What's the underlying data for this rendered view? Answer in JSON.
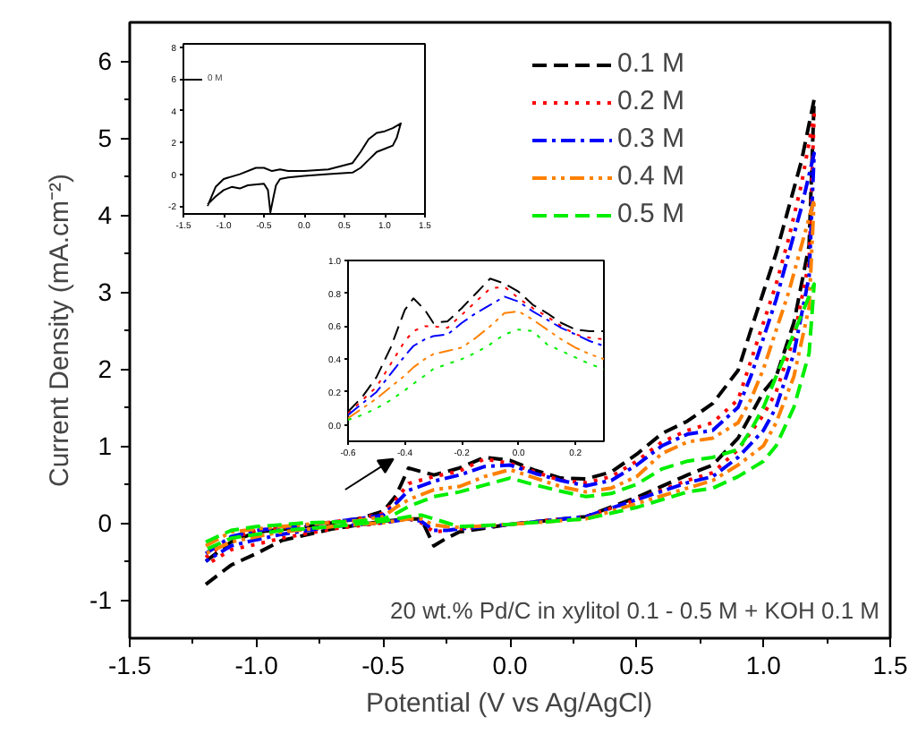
{
  "chart_data": [
    {
      "type": "line",
      "xlabel": "Potential (V vs Ag/AgCl)",
      "ylabel": "Current Density (mA.cm⁻²)",
      "x": [
        -1.2,
        -1.1,
        -1.0,
        -0.8,
        -0.6,
        -0.5,
        -0.45,
        -0.4,
        -0.3,
        -0.2,
        -0.1,
        0,
        0.1,
        0.2,
        0.3,
        0.4,
        0.5,
        0.6,
        0.7,
        0.8,
        0.9,
        0.95,
        1.0,
        1.05,
        1.1,
        1.15,
        1.2,
        1.18,
        1.12,
        1.05,
        1.0,
        0.9,
        0.8,
        0.7,
        0.5,
        0.3,
        0.0,
        -0.2,
        -0.25,
        -0.3,
        -0.35,
        -0.4,
        -0.5,
        -0.7,
        -0.9,
        -1.0,
        -1.1,
        -1.2
      ],
      "series": [
        {
          "name": "0.1 M",
          "color": "#000000",
          "line_style": "dashed",
          "values": [
            -0.5,
            -0.25,
            -0.12,
            -0.05,
            0.05,
            0.15,
            0.35,
            0.71,
            0.62,
            0.71,
            0.85,
            0.81,
            0.68,
            0.58,
            0.57,
            0.66,
            0.89,
            1.16,
            1.32,
            1.55,
            1.98,
            2.5,
            3.0,
            3.5,
            4.1,
            4.7,
            5.5,
            3.6,
            2.6,
            1.9,
            1.7,
            1.1,
            0.75,
            0.62,
            0.33,
            0.08,
            -0.02,
            -0.12,
            -0.2,
            -0.3,
            0.05,
            0.05,
            0.02,
            -0.08,
            -0.23,
            -0.4,
            -0.55,
            -0.8
          ]
        },
        {
          "name": "0.2 M",
          "color": "#ff0000",
          "line_style": "dotted",
          "values": [
            -0.45,
            -0.2,
            -0.1,
            -0.03,
            0.05,
            0.12,
            0.3,
            0.51,
            0.6,
            0.67,
            0.83,
            0.77,
            0.66,
            0.55,
            0.52,
            0.6,
            0.8,
            1.05,
            1.2,
            1.3,
            1.6,
            2.1,
            2.6,
            3.1,
            3.7,
            4.4,
            5.3,
            3.4,
            2.4,
            1.7,
            1.4,
            0.95,
            0.65,
            0.55,
            0.3,
            0.08,
            -0.02,
            -0.08,
            -0.1,
            -0.12,
            0.0,
            0.05,
            0.0,
            -0.08,
            -0.2,
            -0.28,
            -0.35,
            -0.55
          ]
        },
        {
          "name": "0.3 M",
          "color": "#0000ff",
          "line_style": "dashdot",
          "values": [
            -0.4,
            -0.18,
            -0.1,
            -0.03,
            0.05,
            0.1,
            0.25,
            0.42,
            0.54,
            0.62,
            0.73,
            0.75,
            0.64,
            0.55,
            0.48,
            0.55,
            0.75,
            1.0,
            1.15,
            1.2,
            1.5,
            1.9,
            2.4,
            2.9,
            3.5,
            4.1,
            4.8,
            3.2,
            2.2,
            1.5,
            1.2,
            0.85,
            0.6,
            0.52,
            0.3,
            0.08,
            -0.02,
            -0.08,
            -0.1,
            -0.1,
            0.02,
            0.05,
            0.0,
            -0.05,
            -0.15,
            -0.22,
            -0.3,
            -0.5
          ]
        },
        {
          "name": "0.4 M",
          "color": "#ff8000",
          "line_style": "dashdotdot",
          "values": [
            -0.3,
            -0.12,
            -0.08,
            -0.02,
            0.03,
            0.08,
            0.2,
            0.3,
            0.43,
            0.47,
            0.6,
            0.69,
            0.58,
            0.47,
            0.4,
            0.45,
            0.6,
            0.9,
            1.05,
            1.1,
            1.3,
            1.6,
            2.0,
            2.5,
            3.0,
            3.6,
            4.2,
            2.8,
            1.9,
            1.3,
            1.0,
            0.75,
            0.55,
            0.45,
            0.25,
            0.05,
            -0.02,
            -0.06,
            -0.05,
            -0.03,
            0.05,
            0.05,
            0.0,
            -0.05,
            -0.12,
            -0.18,
            -0.25,
            -0.4
          ]
        },
        {
          "name": "0.5 M",
          "color": "#00ee00",
          "line_style": "dashed",
          "values": [
            -0.25,
            -0.1,
            -0.05,
            0.0,
            0.02,
            0.05,
            0.12,
            0.21,
            0.34,
            0.4,
            0.49,
            0.58,
            0.49,
            0.41,
            0.34,
            0.38,
            0.5,
            0.7,
            0.8,
            0.85,
            0.95,
            1.2,
            1.5,
            1.9,
            2.3,
            2.7,
            3.1,
            2.2,
            1.5,
            1.0,
            0.8,
            0.6,
            0.45,
            0.4,
            0.2,
            0.05,
            -0.02,
            -0.05,
            0.0,
            0.05,
            0.1,
            0.08,
            0.02,
            -0.05,
            -0.1,
            -0.15,
            -0.2,
            -0.35
          ]
        }
      ],
      "xlim": [
        -1.5,
        1.5
      ],
      "ylim": [
        -1.5,
        6.5
      ],
      "xticks": [
        {
          "value": -1.5,
          "label": "-1.5"
        },
        {
          "value": -1.25,
          "label": null
        },
        {
          "value": -1.0,
          "label": "-1.0"
        },
        {
          "value": -0.75,
          "label": null
        },
        {
          "value": -0.5,
          "label": "-0.5"
        },
        {
          "value": -0.25,
          "label": null
        },
        {
          "value": 0,
          "label": "0.0"
        },
        {
          "value": 0.25,
          "label": null
        },
        {
          "value": 0.5,
          "label": "0.5"
        },
        {
          "value": 0.75,
          "label": null
        },
        {
          "value": 1.0,
          "label": "1.0"
        },
        {
          "value": 1.25,
          "label": null
        },
        {
          "value": 1.5,
          "label": "1.5"
        }
      ],
      "yticks": [
        -1,
        {
          "value": -0.5,
          "label": null
        },
        0,
        {
          "value": 0.5,
          "label": null
        },
        1,
        {
          "value": 1.5,
          "label": null
        },
        2,
        {
          "value": 2.5,
          "label": null
        },
        3,
        {
          "value": 3.5,
          "label": null
        },
        4,
        {
          "value": 4.5,
          "label": null
        },
        5,
        {
          "value": 5.5,
          "label": null
        },
        6
      ],
      "grid": false,
      "legend": "top right",
      "annotations": [
        "20 wt.% Pd/C in xylitol 0.1 - 0.5 M + KOH 0.1 M"
      ]
    },
    {
      "type": "line",
      "x": [
        -1.2,
        -1.1,
        -1.0,
        -0.8,
        -0.6,
        -0.5,
        -0.4,
        -0.3,
        -0.2,
        0,
        0.3,
        0.6,
        0.7,
        0.8,
        0.9,
        1.0,
        1.1,
        1.2,
        1.15,
        1.1,
        1.0,
        0.9,
        0.8,
        0.7,
        0.6,
        0.3,
        0,
        -0.2,
        -0.3,
        -0.35,
        -0.38,
        -0.42,
        -0.45,
        -0.5,
        -0.7,
        -0.8,
        -0.9,
        -1.0,
        -1.1,
        -1.2
      ],
      "series": [
        {
          "name": "0 M",
          "color": "#000000",
          "line_style": "solid",
          "values": [
            -2.0,
            -0.8,
            -0.3,
            0.0,
            0.4,
            0.4,
            0.2,
            0.3,
            0.2,
            0.2,
            0.3,
            0.7,
            1.4,
            2.2,
            2.6,
            2.7,
            2.9,
            3.2,
            2.3,
            1.8,
            1.6,
            1.4,
            0.9,
            0.4,
            0.1,
            0,
            -0.1,
            -0.2,
            -0.3,
            -0.7,
            -1.4,
            -2.4,
            -1.0,
            -0.6,
            -0.7,
            -0.9,
            -0.8,
            -1.0,
            -1.4,
            -1.9
          ]
        }
      ],
      "xlim": [
        -1.5,
        1.5
      ],
      "ylim": [
        -2.5,
        8.2
      ],
      "xticks": [
        {
          "value": -1.5,
          "label": "-1.5"
        },
        {
          "value": -1.0,
          "label": "-1.0"
        },
        {
          "value": -0.5,
          "label": "-0.5"
        },
        {
          "value": 0,
          "label": "0.0"
        },
        {
          "value": 0.5,
          "label": "0.5"
        },
        {
          "value": 1.0,
          "label": "1.0"
        },
        {
          "value": 1.5,
          "label": "1.5"
        }
      ],
      "yticks": [
        -2,
        0,
        2,
        4,
        6,
        8
      ],
      "grid": false,
      "legend": "top left"
    },
    {
      "type": "line",
      "x": [
        -0.6,
        -0.55,
        -0.5,
        -0.45,
        -0.4,
        -0.37,
        -0.33,
        -0.3,
        -0.25,
        -0.2,
        -0.15,
        -0.1,
        -0.05,
        0,
        0.05,
        0.1,
        0.15,
        0.2,
        0.25,
        0.3
      ],
      "series": [
        {
          "color": "#000000",
          "line_style": "dashed",
          "values": [
            0.08,
            0.17,
            0.29,
            0.47,
            0.7,
            0.77,
            0.7,
            0.62,
            0.63,
            0.71,
            0.8,
            0.89,
            0.86,
            0.81,
            0.73,
            0.68,
            0.62,
            0.58,
            0.57,
            0.57
          ]
        },
        {
          "color": "#ff0000",
          "line_style": "dotted",
          "values": [
            0.07,
            0.15,
            0.23,
            0.37,
            0.51,
            0.57,
            0.6,
            0.6,
            0.59,
            0.67,
            0.75,
            0.83,
            0.84,
            0.77,
            0.71,
            0.66,
            0.6,
            0.55,
            0.53,
            0.52
          ]
        },
        {
          "color": "#0000ff",
          "line_style": "dashdot",
          "values": [
            0.06,
            0.13,
            0.2,
            0.31,
            0.42,
            0.48,
            0.52,
            0.54,
            0.55,
            0.62,
            0.68,
            0.73,
            0.78,
            0.75,
            0.69,
            0.64,
            0.59,
            0.55,
            0.51,
            0.48
          ]
        },
        {
          "color": "#ff8000",
          "line_style": "dashdotdot",
          "values": [
            0.04,
            0.1,
            0.16,
            0.23,
            0.3,
            0.35,
            0.4,
            0.43,
            0.45,
            0.47,
            0.53,
            0.6,
            0.68,
            0.69,
            0.64,
            0.58,
            0.52,
            0.47,
            0.43,
            0.4
          ]
        },
        {
          "color": "#00ee00",
          "line_style": "dotted",
          "values": [
            0.03,
            0.06,
            0.1,
            0.15,
            0.21,
            0.25,
            0.3,
            0.34,
            0.37,
            0.4,
            0.44,
            0.49,
            0.55,
            0.58,
            0.57,
            0.49,
            0.45,
            0.41,
            0.37,
            0.34
          ]
        }
      ],
      "xlim": [
        -0.6,
        0.3
      ],
      "ylim": [
        -0.1,
        1.0
      ],
      "xticks": [
        {
          "value": -0.6,
          "label": "-0.6"
        },
        {
          "value": -0.4,
          "label": "-0.4"
        },
        {
          "value": -0.2,
          "label": "-0.2"
        },
        {
          "value": 0,
          "label": "0.0"
        },
        {
          "value": 0.2,
          "label": "0.2"
        }
      ],
      "yticks": [
        {
          "value": 0,
          "label": "0.0"
        },
        {
          "value": 0.2,
          "label": "0.2"
        },
        {
          "value": 0.4,
          "label": "0.4"
        },
        {
          "value": 0.6,
          "label": "0.6"
        },
        {
          "value": 0.8,
          "label": "0.8"
        },
        {
          "value": 1.0,
          "label": "1.0"
        }
      ],
      "grid": false
    }
  ]
}
